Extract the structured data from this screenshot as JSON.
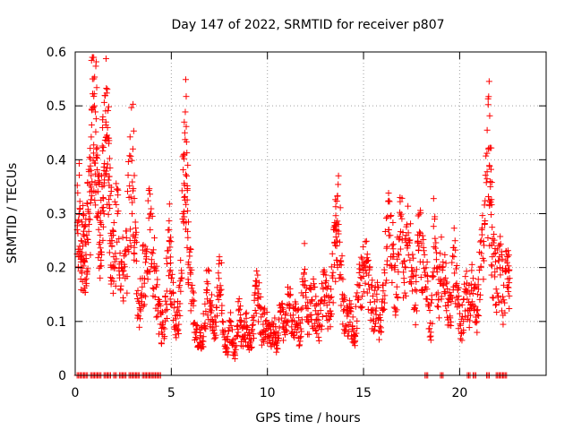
{
  "chart_data": {
    "type": "scatter",
    "title": "Day 147 of 2022, SRMTID for receiver p807",
    "xlabel": "GPS time / hours",
    "ylabel": "SRMTID / TECUs",
    "xlim": [
      0,
      24.5
    ],
    "ylim": [
      0,
      0.6
    ],
    "xticks": [
      0,
      5,
      10,
      15,
      20
    ],
    "xtick_labels": [
      "0",
      "5",
      "10",
      "15",
      "20"
    ],
    "yticks": [
      0,
      0.1,
      0.2,
      0.3,
      0.4,
      0.5,
      0.6
    ],
    "ytick_labels": [
      "0",
      "0.1",
      "0.2",
      "0.3",
      "0.4",
      "0.5",
      "0.6"
    ],
    "grid": true,
    "marker": "+",
    "color": "#ff0000",
    "series": [
      {
        "name": "SRMTID",
        "points": [
          [
            0.1,
            0.27
          ],
          [
            0.2,
            0.3
          ],
          [
            0.3,
            0.22
          ],
          [
            0.4,
            0.24
          ],
          [
            0.5,
            0.21
          ],
          [
            0.6,
            0.26
          ],
          [
            0.7,
            0.29
          ],
          [
            0.8,
            0.32
          ],
          [
            0.9,
            0.55
          ],
          [
            1.0,
            0.5
          ],
          [
            1.1,
            0.42
          ],
          [
            1.2,
            0.3
          ],
          [
            1.3,
            0.26
          ],
          [
            1.4,
            0.35
          ],
          [
            1.5,
            0.38
          ],
          [
            1.6,
            0.47
          ],
          [
            1.7,
            0.44
          ],
          [
            1.8,
            0.31
          ],
          [
            1.9,
            0.25
          ],
          [
            2.0,
            0.22
          ],
          [
            2.2,
            0.3
          ],
          [
            2.4,
            0.2
          ],
          [
            2.6,
            0.18
          ],
          [
            2.8,
            0.33
          ],
          [
            3.0,
            0.42
          ],
          [
            3.1,
            0.25
          ],
          [
            3.3,
            0.11
          ],
          [
            3.5,
            0.18
          ],
          [
            3.7,
            0.22
          ],
          [
            3.9,
            0.27
          ],
          [
            4.1,
            0.2
          ],
          [
            4.3,
            0.13
          ],
          [
            4.5,
            0.08
          ],
          [
            4.7,
            0.12
          ],
          [
            4.9,
            0.25
          ],
          [
            5.0,
            0.18
          ],
          [
            5.2,
            0.09
          ],
          [
            5.4,
            0.12
          ],
          [
            5.6,
            0.3
          ],
          [
            5.7,
            0.45
          ],
          [
            5.8,
            0.37
          ],
          [
            5.9,
            0.21
          ],
          [
            6.1,
            0.14
          ],
          [
            6.3,
            0.08
          ],
          [
            6.5,
            0.06
          ],
          [
            6.7,
            0.09
          ],
          [
            6.9,
            0.17
          ],
          [
            7.1,
            0.12
          ],
          [
            7.3,
            0.07
          ],
          [
            7.5,
            0.22
          ],
          [
            7.7,
            0.08
          ],
          [
            7.9,
            0.05
          ],
          [
            8.1,
            0.1
          ],
          [
            8.3,
            0.04
          ],
          [
            8.5,
            0.12
          ],
          [
            8.7,
            0.07
          ],
          [
            8.9,
            0.09
          ],
          [
            9.1,
            0.06
          ],
          [
            9.3,
            0.11
          ],
          [
            9.5,
            0.16
          ],
          [
            9.7,
            0.08
          ],
          [
            9.9,
            0.1
          ],
          [
            10.1,
            0.07
          ],
          [
            10.3,
            0.09
          ],
          [
            10.5,
            0.06
          ],
          [
            10.7,
            0.12
          ],
          [
            10.9,
            0.08
          ],
          [
            11.1,
            0.15
          ],
          [
            11.3,
            0.1
          ],
          [
            11.5,
            0.12
          ],
          [
            11.7,
            0.07
          ],
          [
            11.9,
            0.19
          ],
          [
            12.1,
            0.1
          ],
          [
            12.3,
            0.14
          ],
          [
            12.5,
            0.12
          ],
          [
            12.7,
            0.09
          ],
          [
            12.9,
            0.16
          ],
          [
            13.1,
            0.13
          ],
          [
            13.3,
            0.11
          ],
          [
            13.5,
            0.27
          ],
          [
            13.6,
            0.24
          ],
          [
            13.7,
            0.28
          ],
          [
            13.9,
            0.15
          ],
          [
            14.1,
            0.09
          ],
          [
            14.3,
            0.12
          ],
          [
            14.5,
            0.06
          ],
          [
            14.7,
            0.14
          ],
          [
            14.9,
            0.18
          ],
          [
            15.1,
            0.2
          ],
          [
            15.3,
            0.16
          ],
          [
            15.5,
            0.12
          ],
          [
            15.7,
            0.14
          ],
          [
            15.9,
            0.08
          ],
          [
            16.1,
            0.19
          ],
          [
            16.3,
            0.27
          ],
          [
            16.5,
            0.22
          ],
          [
            16.7,
            0.15
          ],
          [
            16.9,
            0.33
          ],
          [
            17.1,
            0.18
          ],
          [
            17.3,
            0.24
          ],
          [
            17.5,
            0.2
          ],
          [
            17.7,
            0.13
          ],
          [
            17.9,
            0.26
          ],
          [
            18.1,
            0.21
          ],
          [
            18.3,
            0.16
          ],
          [
            18.5,
            0.08
          ],
          [
            18.7,
            0.29
          ],
          [
            18.9,
            0.14
          ],
          [
            19.1,
            0.2
          ],
          [
            19.3,
            0.17
          ],
          [
            19.5,
            0.11
          ],
          [
            19.7,
            0.22
          ],
          [
            19.9,
            0.14
          ],
          [
            20.1,
            0.08
          ],
          [
            20.3,
            0.16
          ],
          [
            20.5,
            0.12
          ],
          [
            20.7,
            0.18
          ],
          [
            20.9,
            0.1
          ],
          [
            21.1,
            0.2
          ],
          [
            21.3,
            0.28
          ],
          [
            21.5,
            0.42
          ],
          [
            21.6,
            0.35
          ],
          [
            21.7,
            0.22
          ],
          [
            21.9,
            0.16
          ],
          [
            22.1,
            0.2
          ],
          [
            22.3,
            0.14
          ],
          [
            22.5,
            0.22
          ],
          [
            22.6,
            0.18
          ]
        ],
        "zero_points": [
          0.1,
          0.3,
          0.5,
          0.8,
          1.0,
          1.2,
          1.5,
          1.7,
          2.0,
          2.3,
          2.5,
          2.8,
          3.0,
          3.2,
          3.5,
          3.7,
          3.9,
          4.1,
          4.3,
          18.2,
          19.0,
          20.4,
          20.7,
          21.4,
          21.9,
          22.1,
          22.3
        ]
      }
    ]
  }
}
